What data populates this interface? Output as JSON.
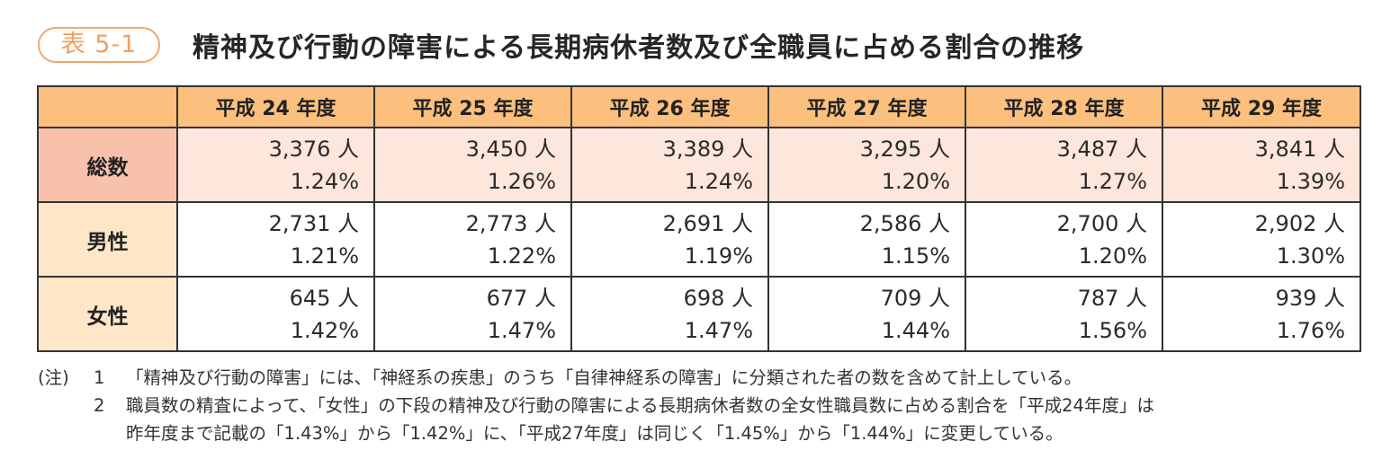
{
  "header": {
    "badge": "表 5-1",
    "title": "精神及び行動の障害による長期病休者数及び全職員に占める割合の推移"
  },
  "table": {
    "corner": "",
    "columns": [
      "平成 24 年度",
      "平成 25 年度",
      "平成 26 年度",
      "平成 27 年度",
      "平成 28 年度",
      "平成 29 年度"
    ],
    "rows": [
      {
        "label": "総数",
        "cells": [
          {
            "count": "3,376 人",
            "pct": "1.24%"
          },
          {
            "count": "3,450 人",
            "pct": "1.26%"
          },
          {
            "count": "3,389 人",
            "pct": "1.24%"
          },
          {
            "count": "3,295 人",
            "pct": "1.20%"
          },
          {
            "count": "3,487 人",
            "pct": "1.27%"
          },
          {
            "count": "3,841 人",
            "pct": "1.39%"
          }
        ]
      },
      {
        "label": "男性",
        "cells": [
          {
            "count": "2,731 人",
            "pct": "1.21%"
          },
          {
            "count": "2,773 人",
            "pct": "1.22%"
          },
          {
            "count": "2,691 人",
            "pct": "1.19%"
          },
          {
            "count": "2,586 人",
            "pct": "1.15%"
          },
          {
            "count": "2,700 人",
            "pct": "1.20%"
          },
          {
            "count": "2,902 人",
            "pct": "1.30%"
          }
        ]
      },
      {
        "label": "女性",
        "cells": [
          {
            "count": "645 人",
            "pct": "1.42%"
          },
          {
            "count": "677 人",
            "pct": "1.47%"
          },
          {
            "count": "698 人",
            "pct": "1.47%"
          },
          {
            "count": "709 人",
            "pct": "1.44%"
          },
          {
            "count": "787 人",
            "pct": "1.56%"
          },
          {
            "count": "939 人",
            "pct": "1.76%"
          }
        ]
      }
    ]
  },
  "notes": {
    "prefix": "(注)",
    "items": [
      {
        "num": "1",
        "lines": [
          "「精神及び行動の障害」には、「神経系の疾患」のうち「自律神経系の障害」に分類された者の数を含めて計上している。"
        ]
      },
      {
        "num": "2",
        "lines": [
          "職員数の精査によって、「女性」の下段の精神及び行動の障害による長期病休者数の全女性職員数に占める割合を「平成24年度」は",
          "昨年度まで記載の「1.43%」から「1.42%」に、「平成27年度」は同じく「1.45%」から「1.44%」に変更している。"
        ]
      }
    ]
  },
  "colors": {
    "header_fill": "#fbbf7e",
    "total_label_fill": "#f8c1ab",
    "total_row_fill": "#fde6dc",
    "sub_label_fill": "#fde7c8",
    "badge_accent": "#f0a060"
  }
}
